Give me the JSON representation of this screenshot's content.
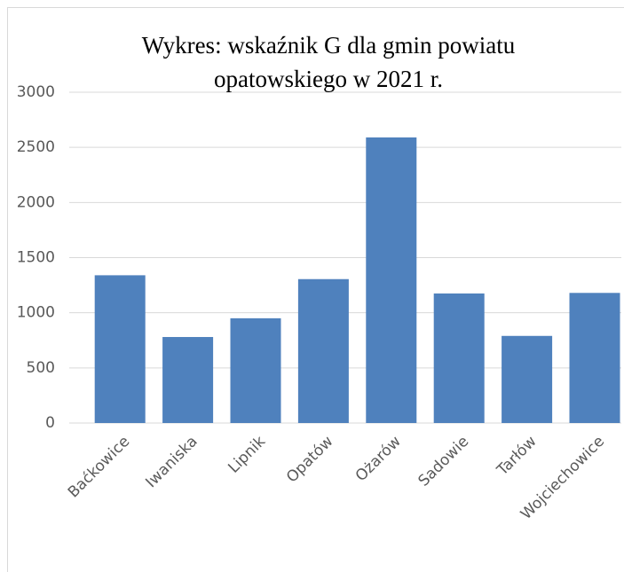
{
  "chart_data": {
    "type": "bar",
    "title": "Wykres: wskaźnik G dla gmin powiatu opatowskiego w 2021 r.",
    "categories": [
      "Baćkowice",
      "Iwaniska",
      "Lipnik",
      "Opatów",
      "Ożarów",
      "Sadowie",
      "Tarłów",
      "Wojciechowice"
    ],
    "values": [
      1340,
      780,
      950,
      1305,
      2590,
      1175,
      790,
      1180
    ],
    "color": "#4f81bd",
    "ylim": [
      0,
      3000
    ],
    "yticks": [
      0,
      500,
      1000,
      1500,
      2000,
      2500,
      3000
    ],
    "grid": true
  }
}
